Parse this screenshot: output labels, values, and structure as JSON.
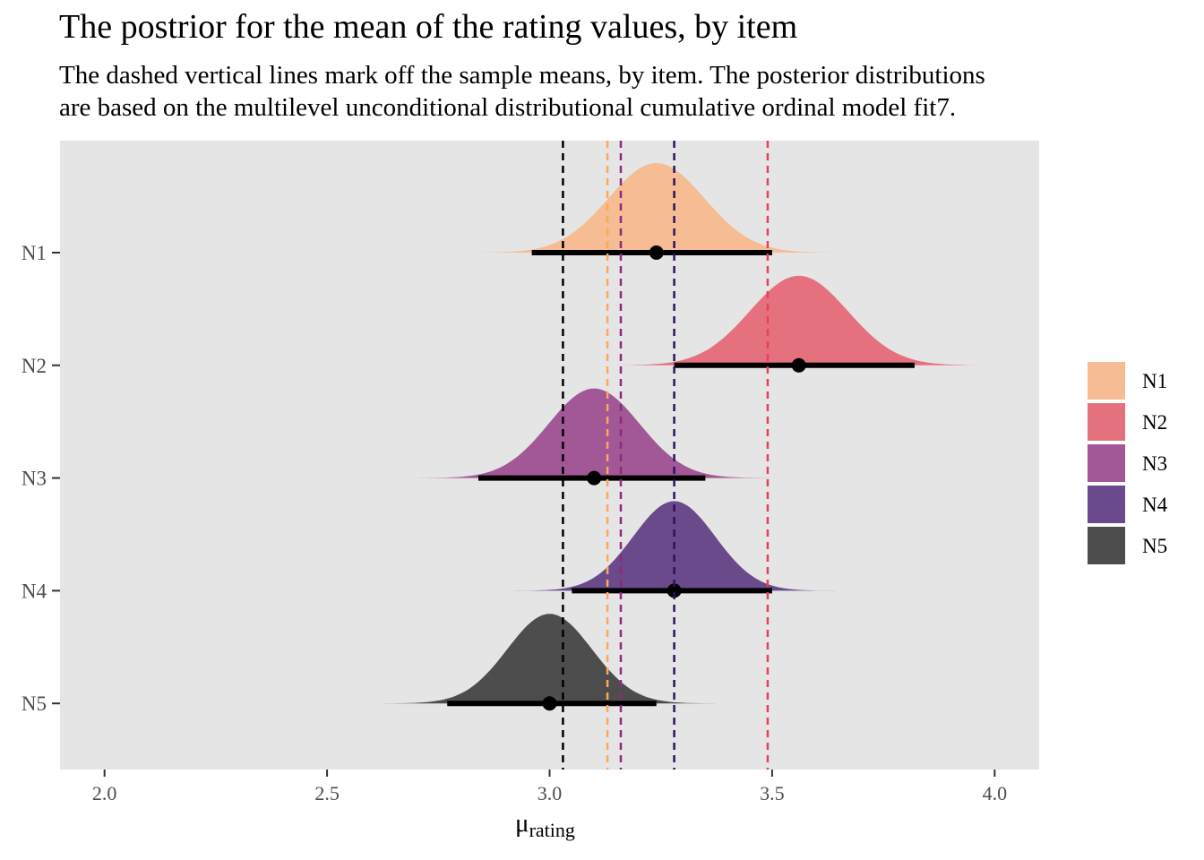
{
  "title": "The postrior for the mean of the rating values, by item",
  "subtitle_lines": [
    "The dashed vertical lines mark off the sample means, by item. The posterior distributions",
    "are based on the multilevel unconditional distributional cumulative ordinal model fit7."
  ],
  "chart_data": {
    "type": "area",
    "xlabel": "μ",
    "xlabel_subscript": "rating",
    "xlim": [
      1.9,
      4.1
    ],
    "x_ticks": [
      "2.0",
      "2.5",
      "3.0",
      "3.5",
      "4.0"
    ],
    "categories": [
      "N1",
      "N2",
      "N3",
      "N4",
      "N5"
    ],
    "grid": false,
    "background": "#e5e5e5",
    "legend_position": "right",
    "series": [
      {
        "name": "N1",
        "color": "#f6bc94",
        "mean": 3.24,
        "sd": 0.108,
        "range": [
          2.78,
          3.72
        ],
        "interval": [
          2.96,
          3.5
        ],
        "point": 3.24,
        "sample_mean": 3.13,
        "line_color": "#fca85a"
      },
      {
        "name": "N2",
        "color": "#e6717e",
        "mean": 3.56,
        "sd": 0.11,
        "range": [
          3.04,
          4.0
        ],
        "interval": [
          3.28,
          3.82
        ],
        "point": 3.56,
        "sample_mean": 3.49,
        "line_color": "#e8405a"
      },
      {
        "name": "N3",
        "color": "#a25896",
        "mean": 3.1,
        "sd": 0.102,
        "range": [
          2.65,
          3.67
        ],
        "interval": [
          2.84,
          3.35
        ],
        "point": 3.1,
        "sample_mean": 3.16,
        "line_color": "#8f2a7a"
      },
      {
        "name": "N4",
        "color": "#6a4a8a",
        "mean": 3.28,
        "sd": 0.092,
        "range": [
          2.78,
          3.7
        ],
        "interval": [
          3.05,
          3.5
        ],
        "point": 3.28,
        "sample_mean": 3.28,
        "line_color": "#2d145e"
      },
      {
        "name": "N5",
        "color": "#4d4d4d",
        "mean": 3.0,
        "sd": 0.095,
        "range": [
          2.62,
          3.42
        ],
        "interval": [
          2.77,
          3.24
        ],
        "point": 3.0,
        "sample_mean": 3.03,
        "line_color": "#000000"
      }
    ]
  }
}
